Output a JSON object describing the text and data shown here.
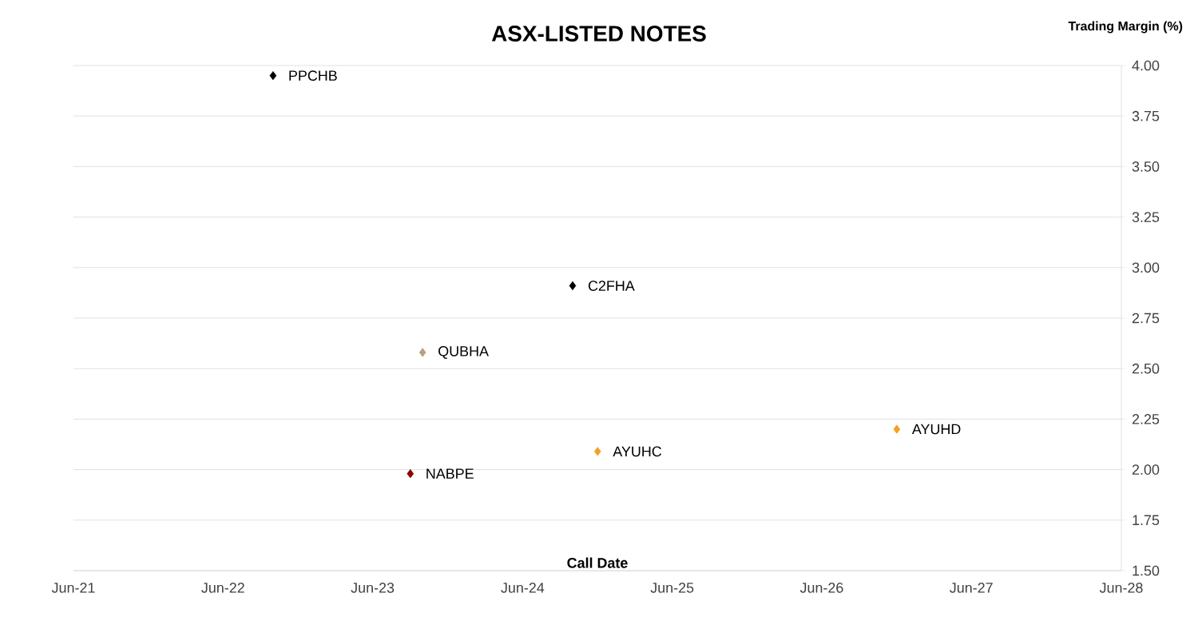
{
  "chart_data": {
    "type": "scatter",
    "title": "ASX-LISTED NOTES",
    "xlabel": "Call Date",
    "ylabel": "Trading Margin (%)",
    "series": [
      {
        "name": "PPCHB",
        "color": "#000000",
        "x": [
          "2022-10-01"
        ],
        "values": [
          3.95
        ]
      },
      {
        "name": "C2FHA",
        "color": "#000000",
        "x": [
          "2024-10-01"
        ],
        "values": [
          2.91
        ]
      },
      {
        "name": "QUBHA",
        "color": "#b8a07a",
        "x": [
          "2023-10-01"
        ],
        "values": [
          2.58
        ]
      },
      {
        "name": "NABPE",
        "color": "#8b0000",
        "x": [
          "2023-09-01"
        ],
        "values": [
          1.98
        ]
      },
      {
        "name": "AYUHC",
        "color": "#f5a020",
        "x": [
          "2024-12-01"
        ],
        "values": [
          2.09
        ]
      },
      {
        "name": "AYUHD",
        "color": "#f5a020",
        "x": [
          "2026-12-01"
        ],
        "values": [
          2.2
        ]
      }
    ],
    "xlim": [
      "2021-06-01",
      "2028-06-01"
    ],
    "xticks": [
      {
        "value": "2021-06-01",
        "label": "Jun-21"
      },
      {
        "value": "2022-06-01",
        "label": "Jun-22"
      },
      {
        "value": "2023-06-01",
        "label": "Jun-23"
      },
      {
        "value": "2024-06-01",
        "label": "Jun-24"
      },
      {
        "value": "2025-06-01",
        "label": "Jun-25"
      },
      {
        "value": "2026-06-01",
        "label": "Jun-26"
      },
      {
        "value": "2027-06-01",
        "label": "Jun-27"
      },
      {
        "value": "2028-06-01",
        "label": "Jun-28"
      }
    ],
    "ylim": [
      1.5,
      4
    ],
    "yticks": [
      {
        "value": 1.5,
        "label": "1.50"
      },
      {
        "value": 1.75,
        "label": "1.75"
      },
      {
        "value": 2,
        "label": "2.00"
      },
      {
        "value": 2.25,
        "label": "2.25"
      },
      {
        "value": 2.5,
        "label": "2.50"
      },
      {
        "value": 2.75,
        "label": "2.75"
      },
      {
        "value": 3,
        "label": "3.00"
      },
      {
        "value": 3.25,
        "label": "3.25"
      },
      {
        "value": 3.5,
        "label": "3.50"
      },
      {
        "value": 3.75,
        "label": "3.75"
      },
      {
        "value": 4,
        "label": "4.00"
      }
    ],
    "grid": "y",
    "legend": false,
    "marker": "diamond"
  }
}
